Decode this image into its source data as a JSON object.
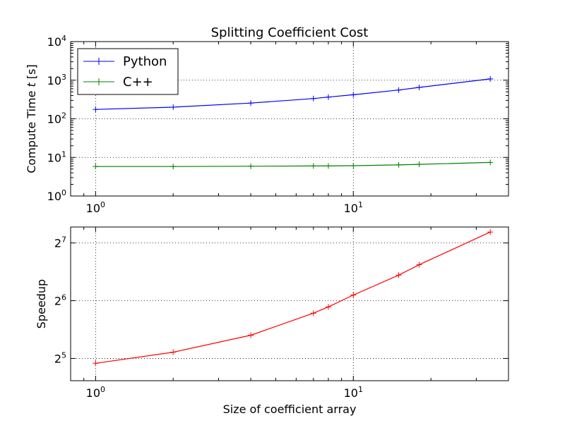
{
  "chart_data": [
    {
      "type": "line",
      "title": "Splitting Coefficient Cost",
      "xlabel": "",
      "ylabel_prefix": "Compute Time ",
      "ylabel_var": "t",
      "ylabel_suffix": " [s]",
      "xscale": "log10",
      "yscale": "log10",
      "xlim": [
        0.8,
        40
      ],
      "ylim": [
        1,
        10000
      ],
      "grid": true,
      "legend_loc": "upper-left",
      "x_ticks": [
        {
          "value": 1,
          "base": "10",
          "exp": "0"
        },
        {
          "value": 10,
          "base": "10",
          "exp": "1"
        }
      ],
      "y_ticks": [
        {
          "value": 1,
          "base": "10",
          "exp": "0"
        },
        {
          "value": 10,
          "base": "10",
          "exp": "1"
        },
        {
          "value": 100,
          "base": "10",
          "exp": "2"
        },
        {
          "value": 1000,
          "base": "10",
          "exp": "3"
        },
        {
          "value": 10000,
          "base": "10",
          "exp": "4"
        }
      ],
      "x": [
        1,
        2,
        4,
        7,
        8,
        10,
        15,
        18,
        34
      ],
      "series": [
        {
          "name": "Python",
          "color": "#0000ff",
          "values": [
            175,
            200,
            255,
            335,
            365,
            420,
            555,
            650,
            1080
          ]
        },
        {
          "name": "C++",
          "color": "#008000",
          "values": [
            5.8,
            5.8,
            5.9,
            6.0,
            6.0,
            6.1,
            6.4,
            6.6,
            7.4
          ]
        }
      ]
    },
    {
      "type": "line",
      "title": "",
      "xlabel": "Size of coefficient array",
      "ylabel": "Speedup",
      "xscale": "log10",
      "yscale": "log2",
      "xlim": [
        0.8,
        40
      ],
      "ylim": [
        24.5,
        155
      ],
      "grid": true,
      "x_ticks": [
        {
          "value": 1,
          "base": "10",
          "exp": "0"
        },
        {
          "value": 10,
          "base": "10",
          "exp": "1"
        }
      ],
      "y_ticks": [
        {
          "value": 32,
          "base": "2",
          "exp": "5"
        },
        {
          "value": 64,
          "base": "2",
          "exp": "6"
        },
        {
          "value": 128,
          "base": "2",
          "exp": "7"
        }
      ],
      "x": [
        1,
        2,
        4,
        7,
        8,
        10,
        15,
        18,
        34
      ],
      "series": [
        {
          "color": "#ff0000",
          "values": [
            30.2,
            34.5,
            42.3,
            55.1,
            59.4,
            68.5,
            87.0,
            98.5,
            145.9
          ]
        }
      ]
    }
  ]
}
